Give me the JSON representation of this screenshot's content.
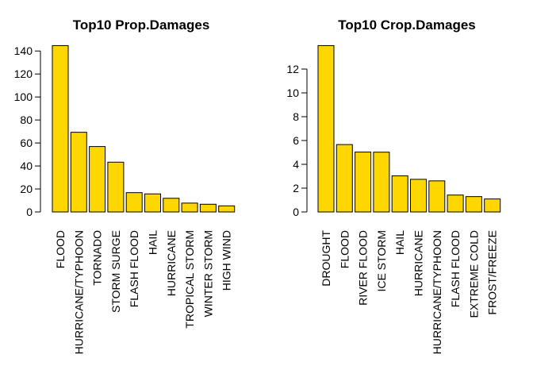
{
  "chart_data": [
    {
      "type": "bar",
      "title": "Top10 Prop.Damages",
      "xlabel": "",
      "ylabel": "",
      "categories": [
        "FLOOD",
        "HURRICANE/TYPHOON",
        "TORNADO",
        "STORM SURGE",
        "FLASH FLOOD",
        "HAIL",
        "HURRICANE",
        "TROPICAL STORM",
        "WINTER STORM",
        "HIGH WIND"
      ],
      "values": [
        144.7,
        69.3,
        56.9,
        43.3,
        16.8,
        15.7,
        11.9,
        7.7,
        6.7,
        5.3
      ],
      "yticks": [
        0,
        20,
        40,
        60,
        80,
        100,
        120,
        140
      ],
      "ylim": [
        0,
        145
      ],
      "grid": false,
      "bar_color": "#FFD700",
      "border_color": "#000000"
    },
    {
      "type": "bar",
      "title": "Top10 Crop.Damages",
      "xlabel": "",
      "ylabel": "",
      "categories": [
        "DROUGHT",
        "FLOOD",
        "RIVER FLOOD",
        "ICE STORM",
        "HAIL",
        "HURRICANE",
        "HURRICANE/TYPHOON",
        "FLASH FLOOD",
        "EXTREME COLD",
        "FROST/FREEZE"
      ],
      "values": [
        13.97,
        5.66,
        5.03,
        5.02,
        3.03,
        2.74,
        2.61,
        1.42,
        1.29,
        1.09
      ],
      "yticks": [
        0,
        2,
        4,
        6,
        8,
        10,
        12
      ],
      "ylim": [
        0,
        14
      ],
      "grid": false,
      "bar_color": "#FFD700",
      "border_color": "#000000"
    }
  ]
}
